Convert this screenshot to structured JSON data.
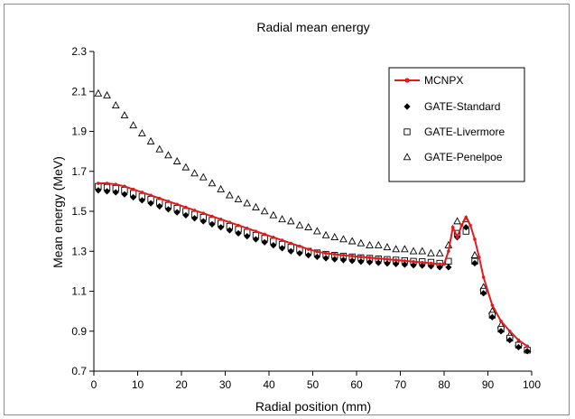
{
  "chart_data": {
    "type": "scatter",
    "title": "Radial mean energy",
    "xlabel": "Radial position (mm)",
    "ylabel": "Mean energy (MeV)",
    "xlim": [
      0,
      100
    ],
    "ylim": [
      0.7,
      2.3
    ],
    "x_ticks": [
      "0",
      "10",
      "20",
      "30",
      "40",
      "50",
      "60",
      "70",
      "80",
      "90",
      "100"
    ],
    "y_ticks": [
      "0.7",
      "0.9",
      "1.1",
      "1.3",
      "1.5",
      "1.7",
      "1.9",
      "2.1",
      "2.3"
    ],
    "grid": false,
    "legend_position": "top-right",
    "series": [
      {
        "name": "MCNPX",
        "style": "line-markers",
        "color": "#e31a1c",
        "x": [
          1,
          3,
          5,
          7,
          9,
          11,
          13,
          15,
          17,
          19,
          21,
          23,
          25,
          27,
          29,
          31,
          33,
          35,
          37,
          39,
          41,
          43,
          45,
          47,
          49,
          51,
          53,
          55,
          57,
          59,
          61,
          63,
          65,
          67,
          69,
          71,
          73,
          75,
          77,
          79,
          80,
          81,
          82,
          83,
          84,
          85,
          86,
          87,
          88,
          89,
          91,
          93,
          95,
          97,
          99
        ],
        "y": [
          1.64,
          1.64,
          1.635,
          1.625,
          1.61,
          1.595,
          1.58,
          1.565,
          1.55,
          1.535,
          1.52,
          1.505,
          1.49,
          1.475,
          1.46,
          1.445,
          1.43,
          1.415,
          1.4,
          1.385,
          1.37,
          1.355,
          1.34,
          1.325,
          1.31,
          1.298,
          1.29,
          1.285,
          1.28,
          1.276,
          1.272,
          1.268,
          1.264,
          1.26,
          1.256,
          1.252,
          1.248,
          1.244,
          1.24,
          1.236,
          1.235,
          1.3,
          1.42,
          1.37,
          1.43,
          1.47,
          1.43,
          1.36,
          1.27,
          1.17,
          1.03,
          0.95,
          0.9,
          0.855,
          0.825
        ]
      },
      {
        "name": "GATE-Standard",
        "style": "markers",
        "marker": "diamond",
        "color": "#000000",
        "x": [
          1,
          3,
          5,
          7,
          9,
          11,
          13,
          15,
          17,
          19,
          21,
          23,
          25,
          27,
          29,
          31,
          33,
          35,
          37,
          39,
          41,
          43,
          45,
          47,
          49,
          51,
          53,
          55,
          57,
          59,
          61,
          63,
          65,
          67,
          69,
          71,
          73,
          75,
          77,
          79,
          81,
          83,
          85,
          87,
          89,
          91,
          93,
          95,
          97,
          99
        ],
        "y": [
          1.605,
          1.6,
          1.595,
          1.585,
          1.57,
          1.555,
          1.54,
          1.525,
          1.51,
          1.495,
          1.48,
          1.465,
          1.45,
          1.435,
          1.42,
          1.405,
          1.39,
          1.375,
          1.36,
          1.345,
          1.33,
          1.315,
          1.3,
          1.29,
          1.28,
          1.272,
          1.265,
          1.26,
          1.256,
          1.252,
          1.248,
          1.245,
          1.242,
          1.239,
          1.236,
          1.233,
          1.23,
          1.228,
          1.225,
          1.22,
          1.22,
          1.37,
          1.42,
          1.24,
          1.09,
          0.97,
          0.9,
          0.855,
          0.82,
          0.8
        ]
      },
      {
        "name": "GATE-Livermore",
        "style": "markers",
        "marker": "square",
        "color": "#000000",
        "x": [
          1,
          3,
          5,
          7,
          9,
          11,
          13,
          15,
          17,
          19,
          21,
          23,
          25,
          27,
          29,
          31,
          33,
          35,
          37,
          39,
          41,
          43,
          45,
          47,
          49,
          51,
          53,
          55,
          57,
          59,
          61,
          63,
          65,
          67,
          69,
          71,
          73,
          75,
          77,
          79,
          81,
          83,
          85,
          87,
          89,
          91,
          93,
          95,
          97,
          99
        ],
        "y": [
          1.625,
          1.62,
          1.615,
          1.605,
          1.59,
          1.575,
          1.56,
          1.545,
          1.53,
          1.515,
          1.5,
          1.485,
          1.47,
          1.455,
          1.44,
          1.425,
          1.41,
          1.395,
          1.38,
          1.365,
          1.35,
          1.335,
          1.32,
          1.31,
          1.3,
          1.292,
          1.285,
          1.28,
          1.276,
          1.272,
          1.268,
          1.265,
          1.262,
          1.259,
          1.256,
          1.253,
          1.25,
          1.248,
          1.245,
          1.24,
          1.25,
          1.39,
          1.4,
          1.25,
          1.1,
          0.98,
          0.91,
          0.865,
          0.83,
          0.805
        ]
      },
      {
        "name": "GATE-Penelpoe",
        "style": "markers",
        "marker": "triangle-open",
        "color": "#000000",
        "x": [
          1,
          3,
          5,
          7,
          9,
          11,
          13,
          15,
          17,
          19,
          21,
          23,
          25,
          27,
          29,
          31,
          33,
          35,
          37,
          39,
          41,
          43,
          45,
          47,
          49,
          51,
          53,
          55,
          57,
          59,
          61,
          63,
          65,
          67,
          69,
          71,
          73,
          75,
          77,
          79,
          81,
          83,
          85,
          87,
          89,
          91,
          93,
          95,
          97,
          99
        ],
        "y": [
          2.09,
          2.08,
          2.03,
          1.98,
          1.93,
          1.89,
          1.85,
          1.81,
          1.78,
          1.75,
          1.72,
          1.69,
          1.67,
          1.64,
          1.61,
          1.58,
          1.56,
          1.54,
          1.52,
          1.5,
          1.48,
          1.46,
          1.45,
          1.43,
          1.42,
          1.4,
          1.38,
          1.37,
          1.36,
          1.35,
          1.34,
          1.33,
          1.33,
          1.32,
          1.31,
          1.31,
          1.3,
          1.3,
          1.29,
          1.29,
          1.33,
          1.45,
          1.46,
          1.28,
          1.12,
          1.0,
          0.93,
          0.88,
          0.84,
          0.81
        ]
      }
    ]
  }
}
